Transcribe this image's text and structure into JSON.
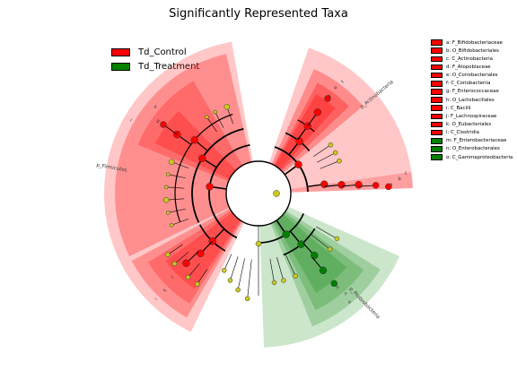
{
  "title": "Significantly Represented Taxa",
  "colors": {
    "control": "#ff0000",
    "treatment": "#008000",
    "nonsig": "#c9c91e",
    "edge": "#000000"
  },
  "groups": [
    {
      "name": "Td_Control",
      "color": "#ff0000"
    },
    {
      "name": "Td_Treatment",
      "color": "#008000"
    }
  ],
  "taxa_legend": [
    {
      "label": "a: F_Bifidobacteriaceae",
      "group": "Td_Control"
    },
    {
      "label": "b: O_Bifidobacteriales",
      "group": "Td_Control"
    },
    {
      "label": "c: C_Actinobacteria",
      "group": "Td_Control"
    },
    {
      "label": "d: F_Atopobiaceae",
      "group": "Td_Control"
    },
    {
      "label": "e: O_Coriobacteriales",
      "group": "Td_Control"
    },
    {
      "label": "f: C_Coriobacteriia",
      "group": "Td_Control"
    },
    {
      "label": "g: F_Enterococcaceae",
      "group": "Td_Control"
    },
    {
      "label": "h: O_Lactobacillales",
      "group": "Td_Control"
    },
    {
      "label": "i: C_Bacilli",
      "group": "Td_Control"
    },
    {
      "label": "j: F_Lachnospiraceae",
      "group": "Td_Control"
    },
    {
      "label": "k: O_Eubacteriales",
      "group": "Td_Control"
    },
    {
      "label": "l: C_Clostridia",
      "group": "Td_Control"
    },
    {
      "label": "m: F_Enterobacteriaceae",
      "group": "Td_Treatment"
    },
    {
      "label": "n: O_Enterobacterales",
      "group": "Td_Treatment"
    },
    {
      "label": "o: C_Gammaproteobacteria",
      "group": "Td_Treatment"
    }
  ],
  "phylum_labels": [
    {
      "text": "p_Actinobacteria"
    },
    {
      "text": "p_Firmicutes"
    },
    {
      "text": "p_Proteobacteria"
    }
  ],
  "clade_letters": [
    "a",
    "b",
    "c",
    "d",
    "e",
    "f",
    "g",
    "h",
    "i",
    "j",
    "k",
    "l",
    "m",
    "n",
    "o"
  ],
  "chart_data": {
    "type": "cladogram",
    "title": "Significantly Represented Taxa",
    "legend": [
      "Td_Control",
      "Td_Treatment"
    ],
    "legend_position": "top-left",
    "phyla": [
      {
        "name": "p_Actinobacteria",
        "enriched_in": "Td_Control",
        "clades": [
          {
            "id": "c",
            "name": "C_Actinobacteria",
            "rank": "class",
            "enriched_in": "Td_Control"
          },
          {
            "id": "b",
            "name": "O_Bifidobacteriales",
            "rank": "order",
            "enriched_in": "Td_Control"
          },
          {
            "id": "a",
            "name": "F_Bifidobacteriaceae",
            "rank": "family",
            "enriched_in": "Td_Control"
          },
          {
            "id": "f",
            "name": "C_Coriobacteriia",
            "rank": "class",
            "enriched_in": "Td_Control"
          },
          {
            "id": "e",
            "name": "O_Coriobacteriales",
            "rank": "order",
            "enriched_in": "Td_Control"
          },
          {
            "id": "d",
            "name": "F_Atopobiaceae",
            "rank": "family",
            "enriched_in": "Td_Control"
          }
        ]
      },
      {
        "name": "p_Firmicutes",
        "enriched_in": "Td_Control",
        "clades": [
          {
            "id": "i",
            "name": "C_Bacilli",
            "rank": "class",
            "enriched_in": "Td_Control"
          },
          {
            "id": "h",
            "name": "O_Lactobacillales",
            "rank": "order",
            "enriched_in": "Td_Control"
          },
          {
            "id": "g",
            "name": "F_Enterococcaceae",
            "rank": "family",
            "enriched_in": "Td_Control"
          },
          {
            "id": "l",
            "name": "C_Clostridia",
            "rank": "class",
            "enriched_in": "Td_Control"
          },
          {
            "id": "k",
            "name": "O_Eubacteriales",
            "rank": "order",
            "enriched_in": "Td_Control"
          },
          {
            "id": "j",
            "name": "F_Lachnospiraceae",
            "rank": "family",
            "enriched_in": "Td_Control"
          }
        ]
      },
      {
        "name": "p_Proteobacteria",
        "enriched_in": "Td_Treatment",
        "clades": [
          {
            "id": "o",
            "name": "C_Gammaproteobacteria",
            "rank": "class",
            "enriched_in": "Td_Treatment"
          },
          {
            "id": "n",
            "name": "O_Enterobacterales",
            "rank": "order",
            "enriched_in": "Td_Treatment"
          },
          {
            "id": "m",
            "name": "F_Enterobacteriaceae",
            "rank": "family",
            "enriched_in": "Td_Treatment"
          }
        ]
      }
    ]
  }
}
